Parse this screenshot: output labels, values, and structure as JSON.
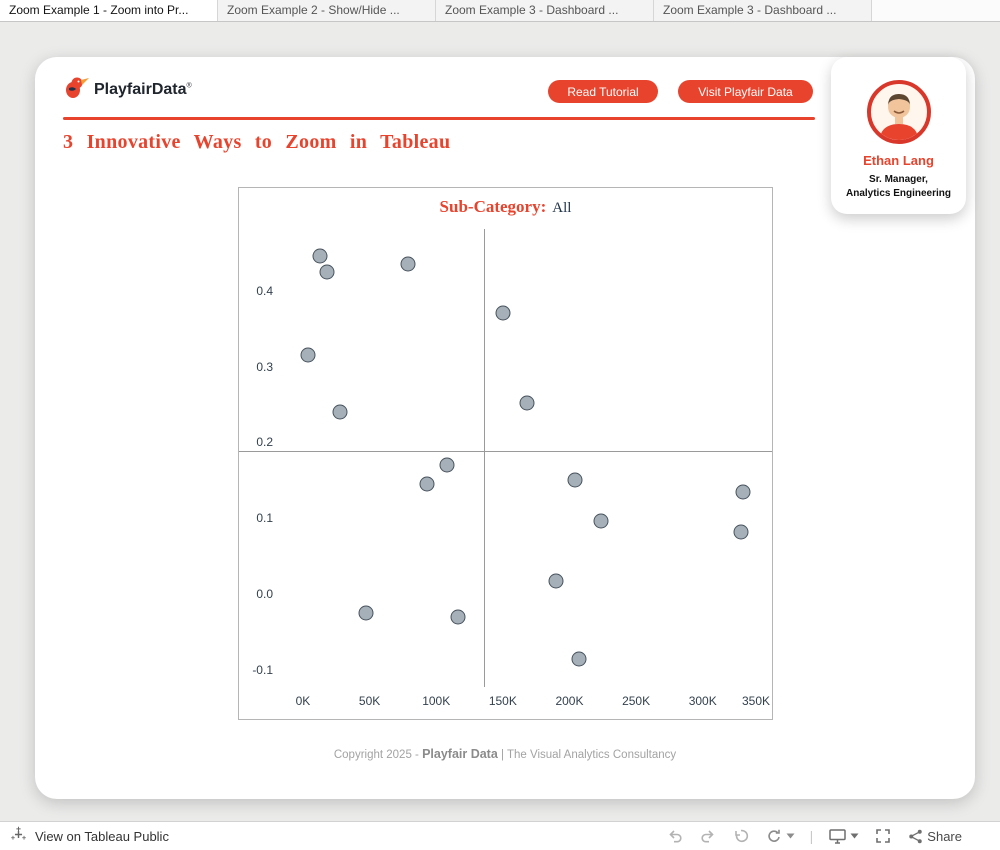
{
  "colors": {
    "accent": "#E8432D",
    "navy": "#1E3248",
    "dot_fill": "#A6B0B9",
    "dot_stroke": "#46525C"
  },
  "tab_bar": {
    "tabs": [
      {
        "label": "Zoom Example 1 - Zoom into Pr...",
        "active": true
      },
      {
        "label": "Zoom Example 2 - Show/Hide ...",
        "active": false
      },
      {
        "label": "Zoom Example 3 - Dashboard ...",
        "active": false
      },
      {
        "label": "Zoom Example 3 - Dashboard ...",
        "active": false
      }
    ]
  },
  "header": {
    "brand": {
      "word1": "Playfair",
      "word2": "Data",
      "registered": "®"
    },
    "read_tutorial_label": "Read Tutorial",
    "visit_label": "Visit Playfair Data"
  },
  "profile": {
    "name": "Ethan Lang",
    "role_line1": "Sr. Manager,",
    "role_line2": "Analytics Engineering"
  },
  "page_title": "3 Innovative Ways to Zoom in Tableau",
  "chart_data": {
    "type": "scatter",
    "title": "Sub-Category:",
    "title_value": "All",
    "xlabel": "",
    "ylabel": "",
    "xlim": [
      -48000,
      352000
    ],
    "ylim": [
      -0.164,
      0.535
    ],
    "grid": false,
    "x_ticks": [
      {
        "label": "0K",
        "value": 0
      },
      {
        "label": "50K",
        "value": 50000
      },
      {
        "label": "100K",
        "value": 100000
      },
      {
        "label": "150K",
        "value": 150000
      },
      {
        "label": "200K",
        "value": 200000
      },
      {
        "label": "250K",
        "value": 250000
      },
      {
        "label": "300K",
        "value": 300000
      },
      {
        "label": "350K",
        "value": 350000
      }
    ],
    "y_ticks": [
      {
        "label": "0.4",
        "value": 0.4
      },
      {
        "label": "0.3",
        "value": 0.3
      },
      {
        "label": "0.2",
        "value": 0.2
      },
      {
        "label": "0.1",
        "value": 0.1
      },
      {
        "label": "0.0",
        "value": 0.0
      },
      {
        "label": "-0.1",
        "value": -0.1
      }
    ],
    "reference_lines": {
      "vertical_x": 135500,
      "horizontal_y": 0.189
    },
    "points": [
      [
        13000,
        0.445
      ],
      [
        18000,
        0.425
      ],
      [
        79000,
        0.435
      ],
      [
        4000,
        0.315
      ],
      [
        150000,
        0.37
      ],
      [
        28000,
        0.24
      ],
      [
        168000,
        0.252
      ],
      [
        108000,
        0.17
      ],
      [
        93000,
        0.145
      ],
      [
        204000,
        0.15
      ],
      [
        224000,
        0.097
      ],
      [
        330000,
        0.135
      ],
      [
        329000,
        0.082
      ],
      [
        190000,
        0.018
      ],
      [
        47000,
        -0.024
      ],
      [
        116000,
        -0.03
      ],
      [
        207000,
        -0.085
      ]
    ]
  },
  "footer": {
    "prefix": "Copyright 2025 - ",
    "brand": "Playfair Data",
    "suffix": " | The Visual Analytics Consultancy"
  },
  "bottom_bar": {
    "view_label": "View on Tableau Public",
    "share_label": "Share",
    "icons": [
      "tableau-public-icon",
      "undo-icon",
      "redo-icon",
      "revert-icon",
      "replay-icon",
      "caret-down-icon",
      "separator",
      "display-icon",
      "caret-down-icon",
      "fullscreen-icon",
      "share-icon"
    ]
  }
}
